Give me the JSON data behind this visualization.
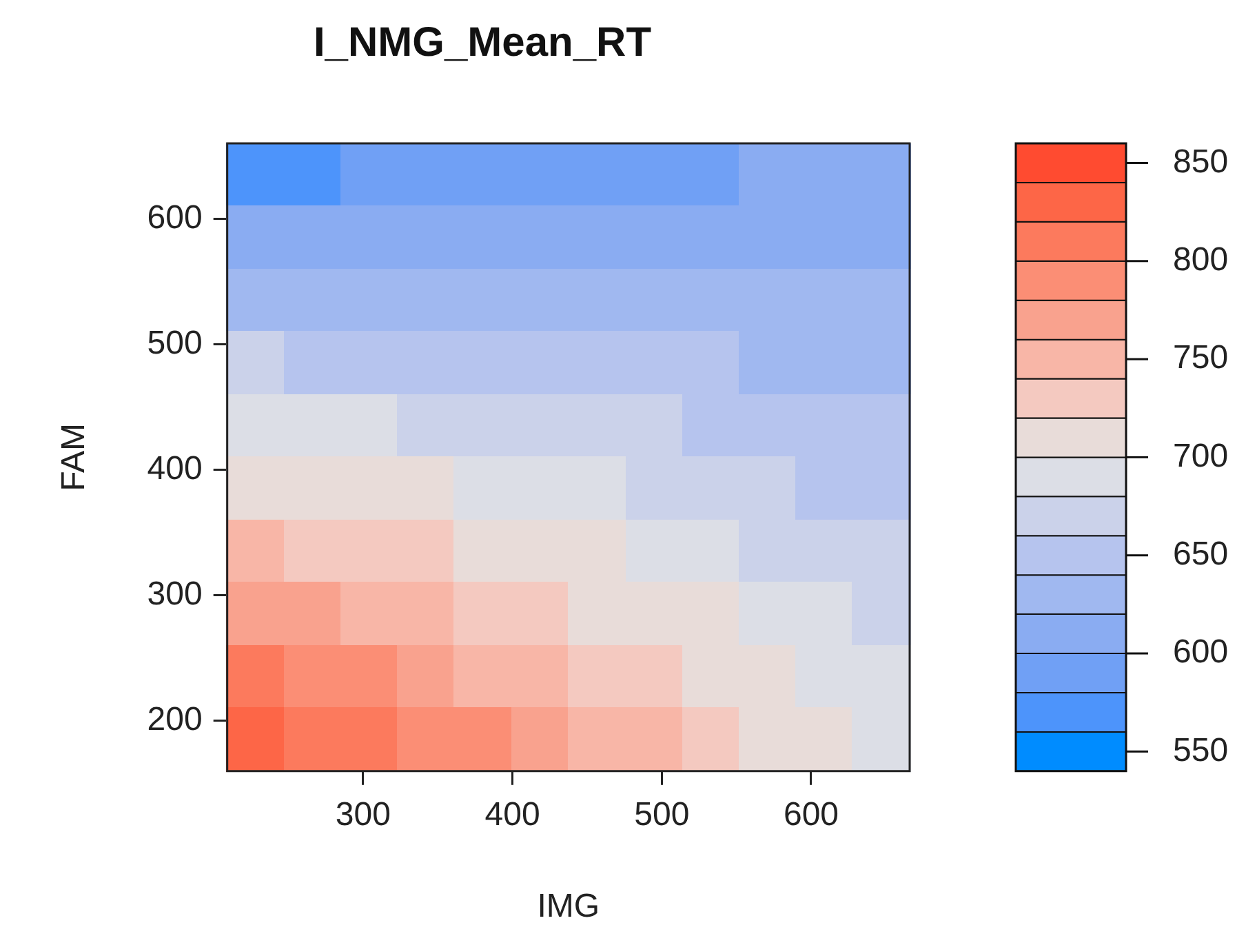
{
  "chart_data": {
    "type": "heatmap",
    "title": "I_NMG_Mean_RT",
    "xlabel": "IMG",
    "ylabel": "FAM",
    "x": [
      228,
      266,
      304,
      342,
      380,
      419,
      457,
      495,
      533,
      571,
      609,
      647
    ],
    "y": [
      635,
      585,
      535,
      485,
      435,
      385,
      335,
      285,
      235,
      185
    ],
    "cells": [
      [
        575,
        578,
        581,
        584,
        587,
        590,
        592,
        595,
        598,
        601,
        604,
        607
      ],
      [
        604,
        605,
        606,
        607,
        608,
        609,
        610,
        612,
        613,
        614,
        615,
        616
      ],
      [
        632,
        631,
        631,
        630,
        630,
        629,
        628,
        628,
        627,
        627,
        626,
        625
      ],
      [
        660,
        658,
        656,
        653,
        651,
        649,
        646,
        644,
        642,
        639,
        637,
        635
      ],
      [
        689,
        685,
        681,
        677,
        673,
        668,
        664,
        660,
        656,
        652,
        648,
        644
      ],
      [
        717,
        711,
        706,
        700,
        694,
        688,
        682,
        676,
        671,
        665,
        659,
        653
      ],
      [
        746,
        738,
        731,
        723,
        715,
        708,
        700,
        693,
        685,
        678,
        670,
        662
      ],
      [
        774,
        765,
        756,
        746,
        737,
        728,
        718,
        709,
        700,
        690,
        681,
        672
      ],
      [
        803,
        792,
        780,
        769,
        758,
        747,
        736,
        725,
        714,
        703,
        692,
        681
      ],
      [
        831,
        818,
        805,
        793,
        780,
        767,
        754,
        741,
        729,
        716,
        703,
        690
      ]
    ],
    "clim": [
      540,
      860
    ],
    "cticks": [
      550,
      600,
      650,
      700,
      750,
      800,
      850
    ],
    "xlim": [
      209,
      666
    ],
    "xticks": [
      300,
      400,
      500,
      600
    ],
    "ylim": [
      160,
      660
    ],
    "yticks": [
      200,
      300,
      400,
      500,
      600
    ]
  }
}
